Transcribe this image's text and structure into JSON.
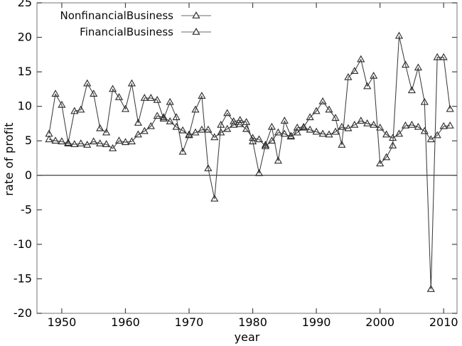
{
  "figure": {
    "background": "#ffffff",
    "frame_color": "#8c8c8c",
    "tick_color": "#444444",
    "line_color": "#3d3d3d",
    "marker_edge_color": "#2f2f2f",
    "text_color": "#000000",
    "marker": "open-triangle"
  },
  "legend": {
    "items": [
      {
        "label": "NonfinancialBusiness",
        "marker": "open-triangle"
      },
      {
        "label": "FinancialBusiness",
        "marker": "open-triangle"
      }
    ]
  },
  "chart_data": {
    "type": "line",
    "title": "",
    "xlabel": "year",
    "ylabel": "rate of profit",
    "grid": false,
    "zero_line": true,
    "legend_position": "top-left-inside",
    "xlim": [
      1946.1,
      2012.1
    ],
    "ylim": [
      -20,
      25
    ],
    "x_ticks": [
      1950,
      1960,
      1970,
      1980,
      1990,
      2000,
      2010
    ],
    "y_ticks": [
      -20,
      -15,
      -10,
      -5,
      0,
      5,
      10,
      15,
      20,
      25
    ],
    "x": [
      1948,
      1949,
      1950,
      1951,
      1952,
      1953,
      1954,
      1955,
      1956,
      1957,
      1958,
      1959,
      1960,
      1961,
      1962,
      1963,
      1964,
      1965,
      1966,
      1967,
      1968,
      1969,
      1970,
      1971,
      1972,
      1973,
      1974,
      1975,
      1976,
      1977,
      1978,
      1979,
      1980,
      1981,
      1982,
      1983,
      1984,
      1985,
      1986,
      1987,
      1988,
      1989,
      1990,
      1991,
      1992,
      1993,
      1994,
      1995,
      1996,
      1997,
      1998,
      1999,
      2000,
      2001,
      2002,
      2003,
      2004,
      2005,
      2006,
      2007,
      2008,
      2009,
      2010,
      2011
    ],
    "series": [
      {
        "name": "NonfinancialBusiness",
        "values": [
          5.2,
          5.0,
          4.9,
          4.6,
          4.5,
          4.6,
          4.4,
          4.9,
          4.6,
          4.5,
          3.9,
          5.0,
          4.8,
          4.9,
          5.9,
          6.4,
          7.1,
          8.6,
          8.4,
          7.8,
          7.0,
          6.5,
          5.8,
          6.2,
          6.6,
          6.6,
          5.5,
          6.2,
          6.7,
          7.3,
          7.4,
          6.7,
          5.4,
          5.2,
          4.2,
          5.0,
          6.2,
          6.0,
          5.6,
          6.2,
          6.9,
          6.6,
          6.3,
          6.0,
          5.9,
          6.3,
          7.0,
          6.8,
          7.3,
          7.9,
          7.5,
          7.3,
          6.9,
          5.9,
          5.4,
          6.0,
          7.2,
          7.3,
          7.0,
          6.4,
          5.2,
          5.8,
          7.1,
          7.2
        ]
      },
      {
        "name": "FinancialBusiness",
        "values": [
          6.0,
          11.8,
          10.2,
          4.7,
          9.3,
          9.5,
          13.3,
          11.8,
          6.8,
          6.2,
          12.5,
          11.3,
          9.6,
          13.3,
          7.6,
          11.2,
          11.2,
          10.9,
          8.2,
          10.6,
          8.4,
          3.4,
          5.9,
          9.5,
          11.5,
          1.0,
          -3.4,
          7.3,
          9.0,
          7.8,
          8.0,
          7.7,
          4.9,
          0.3,
          4.4,
          7.0,
          2.1,
          7.9,
          5.7,
          6.9,
          7.0,
          8.4,
          9.3,
          10.7,
          9.5,
          8.3,
          4.4,
          14.2,
          15.1,
          16.8,
          12.9,
          14.4,
          1.7,
          2.6,
          4.3,
          20.2,
          16.0,
          12.3,
          15.6,
          10.6,
          -16.5,
          17.1,
          17.1,
          9.6
        ]
      }
    ]
  }
}
